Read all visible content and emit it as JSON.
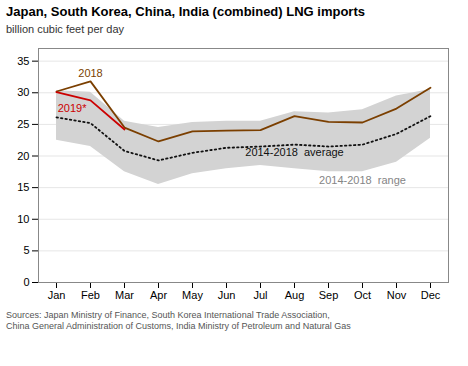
{
  "chart_data": {
    "type": "line",
    "title": "Japan, South Korea, China, India (combined) LNG imports",
    "subtitle": "billion cubic feet per day",
    "source": "Sources:  Japan Ministry of Finance, South Korea International Trade Association,\nChina General Administration of Customs, India Ministry of Petroleum and Natural Gas",
    "categories": [
      "Jan",
      "Feb",
      "Mar",
      "Apr",
      "May",
      "Jun",
      "Jul",
      "Aug",
      "Sep",
      "Oct",
      "Nov",
      "Dec"
    ],
    "series": [
      {
        "name": "2014-2018  range",
        "type": "area",
        "color": "#D3D3D3",
        "lower": [
          22.5,
          21.5,
          17.5,
          15.5,
          17.2,
          18.0,
          18.5,
          18.0,
          17.5,
          17.5,
          19.0,
          22.8
        ],
        "upper": [
          30.3,
          30.1,
          25.5,
          24.5,
          25.3,
          25.5,
          25.5,
          27.0,
          26.8,
          27.3,
          29.5,
          30.5
        ]
      },
      {
        "name": "2014-2018  average",
        "type": "line",
        "color": "#111111",
        "line_style": "dotted",
        "values": [
          26.1,
          25.2,
          20.8,
          19.3,
          20.5,
          21.3,
          21.5,
          21.8,
          21.5,
          21.8,
          23.5,
          26.3
        ]
      },
      {
        "name": "2018",
        "type": "line",
        "color": "#7B3F00",
        "values": [
          30.2,
          31.8,
          24.5,
          22.3,
          23.9,
          24.0,
          24.1,
          26.3,
          25.4,
          25.3,
          27.5,
          30.8
        ]
      },
      {
        "name": "2019*",
        "type": "line",
        "color": "#CC0000",
        "values": [
          30.1,
          28.8,
          24.2,
          null,
          null,
          null,
          null,
          null,
          null,
          null,
          null,
          null
        ]
      }
    ],
    "ylim": [
      0,
      37
    ],
    "yticks": [
      0,
      5,
      10,
      15,
      20,
      25,
      30,
      35
    ],
    "grid": true
  }
}
